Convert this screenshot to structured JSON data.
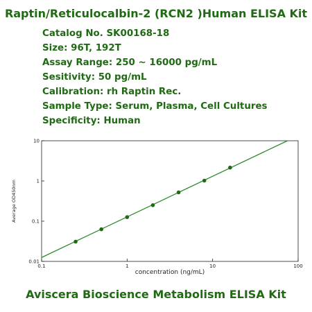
{
  "header": {
    "title": "Raptin/Reticulocalbin-2 (RCN2 )Human ELISA Kit"
  },
  "specs": [
    "Catalog No. SK00168-18",
    "Size: 96T, 192T",
    "Assay Range: 250 ~ 16000 pg/mL",
    "Sesitivity: 50 pg/mL",
    "Calibration: rh  Raptin Rec.",
    "Sample Type: Serum, Plasma, Cell Cultures",
    "Specificity: Human"
  ],
  "footer": {
    "text": "Aviscera Bioscience Metabolism ELISA Kit"
  },
  "colors": {
    "text": "#1f6a13",
    "curve": "#2e8b2e",
    "points": "#1f6a13",
    "axis": "#222222"
  },
  "chart_data": {
    "type": "scatter",
    "xlabel": "concentration (ng/mL)",
    "ylabel": "Average OD450nm",
    "x_scale": "log",
    "y_scale": "log",
    "xlim": [
      0.1,
      100
    ],
    "ylim": [
      0.01,
      10
    ],
    "x_ticks": [
      "0.1",
      "1",
      "10",
      "100"
    ],
    "y_ticks": [
      "0.01",
      "0.1",
      "1",
      "10"
    ],
    "grid": false,
    "series": [
      {
        "x": [
          0.25,
          0.5,
          1,
          2,
          4,
          8,
          16
        ],
        "y": [
          0.031,
          0.063,
          0.126,
          0.25,
          0.52,
          1.02,
          2.15
        ]
      }
    ],
    "fit_line": {
      "x": [
        0.1,
        75
      ],
      "y": [
        0.0125,
        10
      ]
    }
  }
}
